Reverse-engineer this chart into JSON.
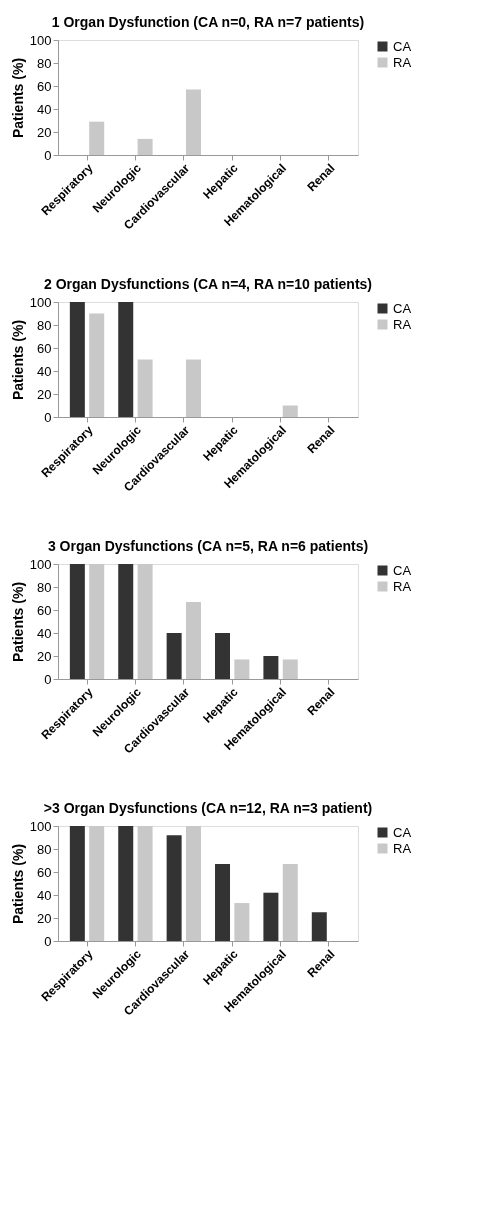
{
  "chart_data": [
    {
      "type": "bar",
      "title": "1 Organ Dysfunction (CA n=0, RA n=7 patients)",
      "ylabel": "Patients (%)",
      "categories": [
        "Respiratory",
        "Neurologic",
        "Cardiovascular",
        "Hepatic",
        "Hematological",
        "Renal"
      ],
      "series": [
        {
          "name": "CA",
          "color": "#333333",
          "values": [
            0,
            0,
            0,
            0,
            0,
            0
          ]
        },
        {
          "name": "RA",
          "color": "#c8c8c8",
          "values": [
            29,
            14,
            57,
            0,
            0,
            0
          ]
        }
      ],
      "ylim": [
        0,
        100
      ],
      "yticks": [
        0,
        20,
        40,
        60,
        80,
        100
      ],
      "grid": false,
      "legend": "right"
    },
    {
      "type": "bar",
      "title": "2 Organ Dysfunctions (CA n=4, RA n=10 patients)",
      "ylabel": "Patients (%)",
      "categories": [
        "Respiratory",
        "Neurologic",
        "Cardiovascular",
        "Hepatic",
        "Hematological",
        "Renal"
      ],
      "series": [
        {
          "name": "CA",
          "color": "#333333",
          "values": [
            100,
            100,
            0,
            0,
            0,
            0
          ]
        },
        {
          "name": "RA",
          "color": "#c8c8c8",
          "values": [
            90,
            50,
            50,
            0,
            10,
            0
          ]
        }
      ],
      "ylim": [
        0,
        100
      ],
      "yticks": [
        0,
        20,
        40,
        60,
        80,
        100
      ],
      "grid": false,
      "legend": "right"
    },
    {
      "type": "bar",
      "title": "3 Organ Dysfunctions (CA n=5, RA n=6 patients)",
      "ylabel": "Patients (%)",
      "categories": [
        "Respiratory",
        "Neurologic",
        "Cardiovascular",
        "Hepatic",
        "Hematological",
        "Renal"
      ],
      "series": [
        {
          "name": "CA",
          "color": "#333333",
          "values": [
            100,
            100,
            40,
            40,
            20,
            0
          ]
        },
        {
          "name": "RA",
          "color": "#c8c8c8",
          "values": [
            100,
            100,
            67,
            17,
            17,
            0
          ]
        }
      ],
      "ylim": [
        0,
        100
      ],
      "yticks": [
        0,
        20,
        40,
        60,
        80,
        100
      ],
      "grid": false,
      "legend": "right"
    },
    {
      "type": "bar",
      "title": ">3 Organ Dysfunctions (CA n=12, RA n=3 patient)",
      "ylabel": "Patients (%)",
      "categories": [
        "Respiratory",
        "Neurologic",
        "Cardiovascular",
        "Hepatic",
        "Hematological",
        "Renal"
      ],
      "series": [
        {
          "name": "CA",
          "color": "#333333",
          "values": [
            100,
            100,
            92,
            67,
            42,
            25
          ]
        },
        {
          "name": "RA",
          "color": "#c8c8c8",
          "values": [
            100,
            100,
            100,
            33,
            67,
            0
          ]
        }
      ],
      "ylim": [
        0,
        100
      ],
      "yticks": [
        0,
        20,
        40,
        60,
        80,
        100
      ],
      "grid": false,
      "legend": "right"
    }
  ]
}
